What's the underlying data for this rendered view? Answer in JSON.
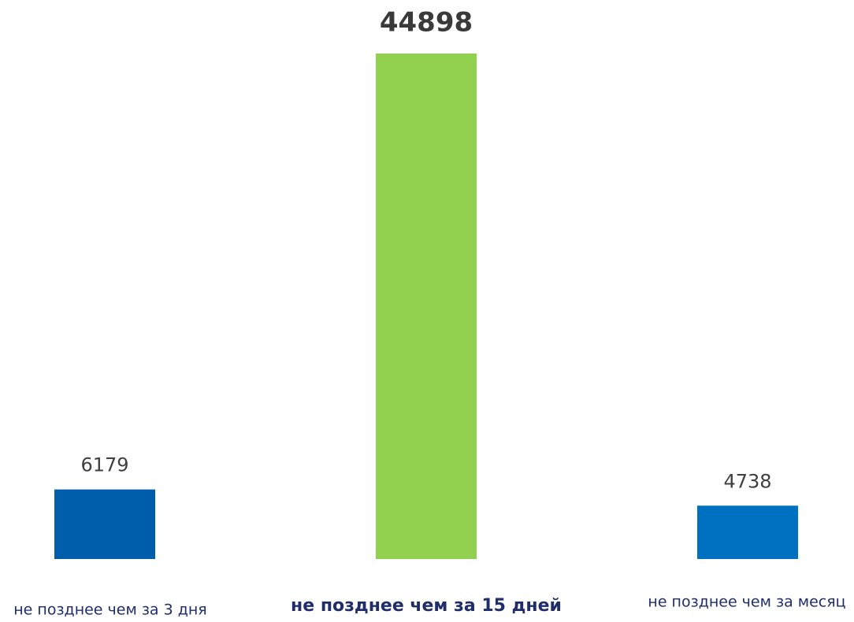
{
  "chart_data": {
    "type": "bar",
    "categories": [
      "не позднее чем за 3 дня",
      "не позднее чем за 15 дней",
      "не позднее чем за месяц"
    ],
    "values": [
      6179,
      44898,
      4738
    ],
    "colors": [
      "#005eac",
      "#92d050",
      "#0070c0"
    ]
  }
}
